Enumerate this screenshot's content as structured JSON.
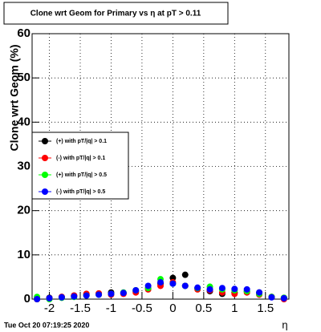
{
  "chart_data": {
    "type": "scatter",
    "title": "Clone wrt Geom for Primary vs   η at pT > 0.11",
    "y_label": "Clone wrt Geom (%)",
    "x_label": "η",
    "timestamp": "Tue Oct 20 07:19:25 2020",
    "x": [
      -2.2,
      -2.0,
      -1.8,
      -1.6,
      -1.4,
      -1.2,
      -1.0,
      -0.8,
      -0.6,
      -0.4,
      -0.2,
      0.0,
      0.2,
      0.4,
      0.6,
      0.8,
      1.0,
      1.2,
      1.4,
      1.6,
      1.8
    ],
    "series": [
      {
        "name": "(+) with pT/|q| > 0.1",
        "color": "#000000",
        "values": [
          0,
          0.3,
          0.5,
          0.8,
          1,
          1.2,
          1.5,
          1.3,
          1.8,
          2.5,
          3.5,
          4.8,
          5.5,
          2.5,
          1.8,
          1.2,
          1.5,
          1.8,
          1.5,
          0.5,
          0.3
        ]
      },
      {
        "name": "(-) with pT/|q| > 0.1",
        "color": "#ff0000",
        "values": [
          0,
          0.2,
          0.5,
          0.8,
          1.2,
          1.3,
          1,
          1.2,
          1.5,
          2.2,
          3,
          3.8,
          3,
          2.2,
          2,
          1.5,
          1.2,
          1.5,
          1,
          0.5,
          0
        ]
      },
      {
        "name": "(+) with pT/|q| > 0.5",
        "color": "#00ff00",
        "values": [
          0.5,
          0,
          0.3,
          0.5,
          0.8,
          1,
          1.2,
          1.5,
          2,
          2.5,
          4.5,
          3.5,
          3,
          2.5,
          2.8,
          2.2,
          2,
          1.8,
          1.2,
          0.5,
          0.3
        ]
      },
      {
        "name": "(-) with pT/|q| > 0.5",
        "color": "#0000ff",
        "values": [
          0,
          0.2,
          0.4,
          0.6,
          0.8,
          1,
          1.2,
          1.4,
          2,
          3,
          3.8,
          3.5,
          3,
          2.6,
          2.2,
          2.5,
          2.3,
          2.2,
          1.5,
          0.4,
          0.2
        ]
      }
    ],
    "xlim": [
      -2.28,
      1.88
    ],
    "xticks": [
      -2,
      -1.5,
      -1,
      -0.5,
      0,
      0.5,
      1,
      1.5
    ],
    "ylim": [
      0,
      60
    ],
    "yticks": [
      0,
      10,
      20,
      30,
      40,
      50,
      60
    ],
    "grid": true,
    "legend": "left"
  }
}
